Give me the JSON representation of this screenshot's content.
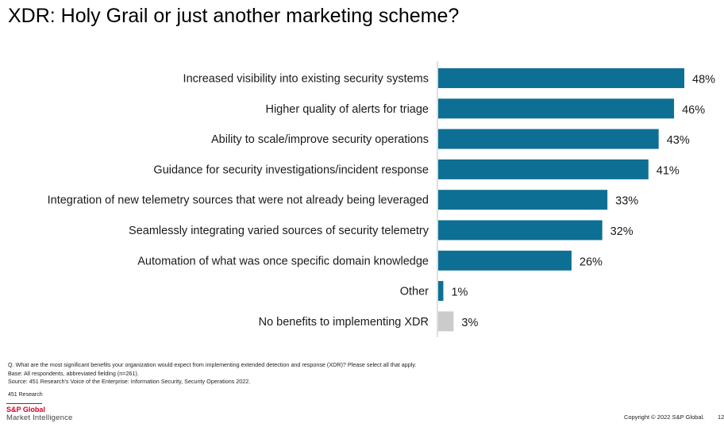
{
  "page": {
    "title": "XDR: Holy Grail or just another marketing scheme?",
    "footnotes": {
      "question": "Q. What are the most significant benefits your organization would expect from implementing extended detection and response (XDR)? Please select all that apply.",
      "base": "Base: All respondents, abbreviated fielding (n=261).",
      "source": "Source: 451 Research's Voice of the Enterprise: Information Security, Security Operations 2022."
    },
    "research_label": "451 Research",
    "brand": "S&P Global",
    "brand_sub": "Market Intelligence",
    "copyright": "Copyright © 2022 S&P Global.",
    "page_number": "12",
    "colors": {
      "bar": "#0e6f94",
      "bar_muted": "#cbcbcb",
      "brand": "#d6002a"
    }
  },
  "chart_data": {
    "type": "bar",
    "orientation": "horizontal",
    "categories": [
      "Increased visibility into existing security systems",
      "Higher quality of alerts for triage",
      "Ability to scale/improve security operations",
      "Guidance for security investigations/incident response",
      "Integration of new telemetry sources that were not already being leveraged",
      "Seamlessly integrating varied sources of security telemetry",
      "Automation of what was once specific domain knowledge",
      "Other",
      "No benefits to implementing XDR"
    ],
    "values": [
      48,
      46,
      43,
      41,
      33,
      32,
      26,
      1,
      3
    ],
    "value_labels": [
      "48%",
      "46%",
      "43%",
      "41%",
      "33%",
      "32%",
      "26%",
      "1%",
      "3%"
    ],
    "muted": [
      false,
      false,
      false,
      false,
      false,
      false,
      false,
      false,
      true
    ],
    "xlim": [
      0,
      48
    ],
    "grid": false,
    "title": "",
    "xlabel": "",
    "ylabel": ""
  }
}
